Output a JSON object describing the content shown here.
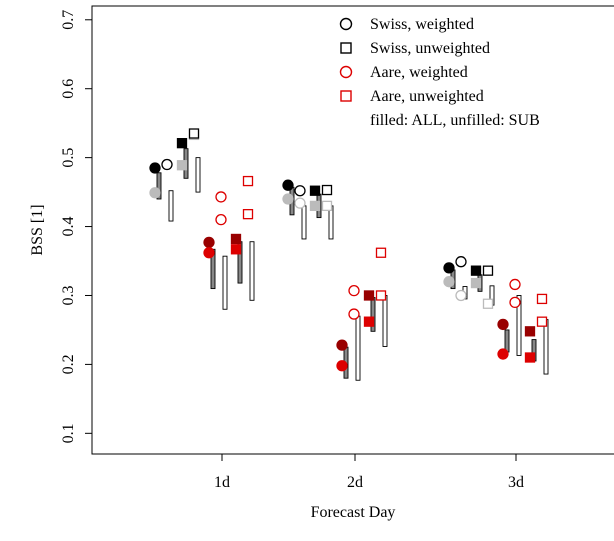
{
  "chart_data": {
    "type": "scatter",
    "title": "",
    "xlabel": "Forecast Day",
    "ylabel": "BSS  [1]",
    "categories": [
      "1d",
      "2d",
      "3d"
    ],
    "ylim": [
      0.07,
      0.72
    ],
    "yticks": [
      "0.1",
      "0.2",
      "0.3",
      "0.4",
      "0.5",
      "0.6",
      "0.7"
    ],
    "grid": false,
    "legend_position": "top-right",
    "legend": [
      {
        "label": "Swiss, weighted",
        "marker": "circle",
        "color": "#000000"
      },
      {
        "label": "Swiss, unweighted",
        "marker": "square",
        "color": "#000000"
      },
      {
        "label": "Aare, weighted",
        "marker": "circle",
        "color": "#dd0000"
      },
      {
        "label": "Aare, unweighted",
        "marker": "square",
        "color": "#dd0000"
      }
    ],
    "legend_note": "filled: ALL, unfilled: SUB",
    "series": [
      {
        "name": "Swiss, weighted",
        "marker": "circle",
        "color": "#000000",
        "light_color": "#bbbbbb",
        "filled": [
          0.485,
          0.46,
          0.34
        ],
        "filled_light": [
          0.449,
          0.44,
          0.32
        ],
        "unfilled": [
          0.49,
          0.452,
          0.349
        ],
        "unfilled_light": [
          0.49,
          0.434,
          0.3
        ],
        "ranges_filled": [
          [
            0.44,
            0.478
          ],
          [
            0.417,
            0.457
          ],
          [
            0.31,
            0.337
          ]
        ],
        "ranges_unfilled": [
          [
            0.408,
            0.452
          ],
          [
            0.382,
            0.43
          ],
          [
            0.295,
            0.313
          ]
        ]
      },
      {
        "name": "Swiss, unweighted",
        "marker": "square",
        "color": "#000000",
        "light_color": "#bbbbbb",
        "filled": [
          0.521,
          0.452,
          0.336
        ],
        "filled_light": [
          0.489,
          0.43,
          0.318
        ],
        "unfilled": [
          0.535,
          0.453,
          0.336
        ],
        "unfilled_light": [
          0.533,
          0.43,
          0.288
        ],
        "ranges_filled": [
          [
            0.47,
            0.513
          ],
          [
            0.413,
            0.447
          ],
          [
            0.306,
            0.33
          ]
        ],
        "ranges_unfilled": [
          [
            0.45,
            0.5
          ],
          [
            0.382,
            0.43
          ],
          [
            0.286,
            0.314
          ]
        ]
      },
      {
        "name": "Aare, weighted",
        "marker": "circle",
        "color": "#dd0000",
        "dark_color": "#990000",
        "filled": [
          0.362,
          0.198,
          0.215
        ],
        "filled_dark": [
          0.377,
          0.228,
          0.258
        ],
        "unfilled": [
          0.443,
          0.307,
          0.316
        ],
        "unfilled_light": [
          0.41,
          0.273,
          0.29
        ],
        "ranges_filled": [
          [
            0.31,
            0.367
          ],
          [
            0.18,
            0.225
          ],
          [
            0.218,
            0.25
          ]
        ],
        "ranges_unfilled": [
          [
            0.28,
            0.357
          ],
          [
            0.177,
            0.27
          ],
          [
            0.213,
            0.3
          ]
        ]
      },
      {
        "name": "Aare, unweighted",
        "marker": "square",
        "color": "#dd0000",
        "dark_color": "#990000",
        "filled": [
          0.367,
          0.262,
          0.21
        ],
        "filled_dark": [
          0.382,
          0.3,
          0.248
        ],
        "unfilled": [
          0.466,
          0.362,
          0.295
        ],
        "unfilled_light": [
          0.418,
          0.3,
          0.262
        ],
        "ranges_filled": [
          [
            0.318,
            0.378
          ],
          [
            0.248,
            0.297
          ],
          [
            0.205,
            0.236
          ]
        ],
        "ranges_unfilled": [
          [
            0.293,
            0.378
          ],
          [
            0.226,
            0.3
          ],
          [
            0.186,
            0.265
          ]
        ]
      }
    ]
  }
}
